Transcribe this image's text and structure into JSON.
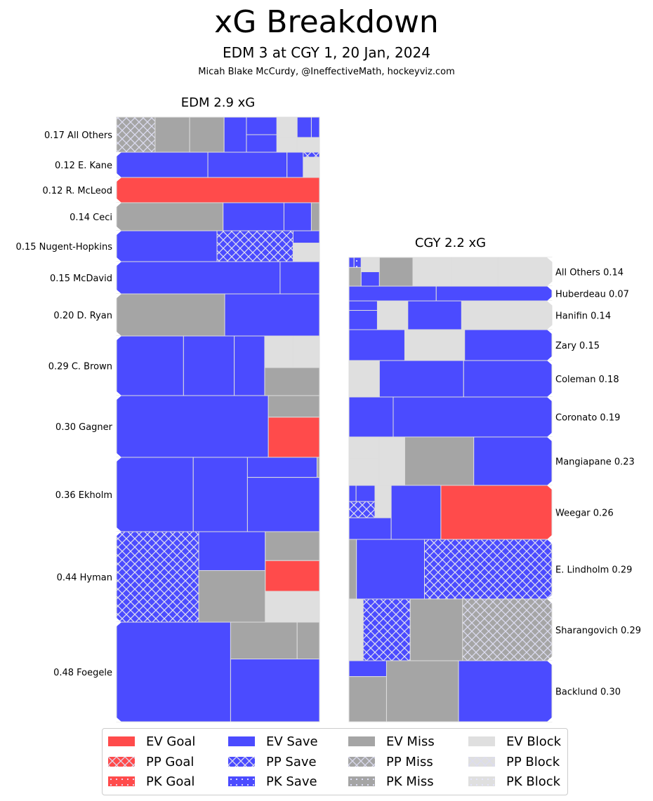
{
  "header": {
    "title": "xG Breakdown",
    "subtitle": "EDM 3 at CGY 1, 20 Jan, 2024",
    "credit": "Micah Blake McCurdy, @IneffectiveMath, hockeyviz.com"
  },
  "colors": {
    "goal": "#ff4b4b",
    "save": "#4b4bff",
    "miss": "#a5a5a5",
    "block": "#dfdfdf",
    "cell_border": "#dddddd"
  },
  "chart_data": {
    "type": "treemap",
    "title": "xG Breakdown",
    "panels": [
      {
        "team": "EDM",
        "title": "EDM 2.9 xG",
        "total_xg": 2.9,
        "label_side": "left",
        "players": [
          {
            "name": "All Others",
            "xg": 0.17,
            "label": "0.17 All Others",
            "cells": [
              "PP Miss",
              "EV Miss",
              "EV Miss",
              "EV Save",
              "EV Save",
              "EV Save",
              "EV Block",
              "EV Block",
              "EV Save",
              "EV Save",
              "EV Block"
            ]
          },
          {
            "name": "E. Kane",
            "xg": 0.12,
            "label": "0.12 E. Kane",
            "cells": [
              "EV Save",
              "EV Save",
              "EV Save",
              "PP Save",
              "EV Block"
            ]
          },
          {
            "name": "R. McLeod",
            "xg": 0.12,
            "label": "0.12 R. McLeod",
            "cells": [
              "EV Goal"
            ]
          },
          {
            "name": "Ceci",
            "xg": 0.14,
            "label": "0.14 Ceci",
            "cells": [
              "EV Miss",
              "EV Save",
              "EV Save",
              "EV Miss"
            ]
          },
          {
            "name": "Nugent-Hopkins",
            "xg": 0.15,
            "label": "0.15 Nugent-Hopkins",
            "cells": [
              "EV Save",
              "PP Save",
              "EV Save",
              "EV Block"
            ]
          },
          {
            "name": "McDavid",
            "xg": 0.15,
            "label": "0.15 McDavid",
            "cells": [
              "EV Save",
              "EV Save"
            ]
          },
          {
            "name": "D. Ryan",
            "xg": 0.2,
            "label": "0.20 D. Ryan",
            "cells": [
              "EV Miss",
              "EV Save"
            ]
          },
          {
            "name": "C. Brown",
            "xg": 0.29,
            "label": "0.29 C. Brown",
            "cells": [
              "EV Save",
              "EV Save",
              "EV Save",
              "EV Block",
              "EV Block",
              "EV Miss"
            ]
          },
          {
            "name": "Gagner",
            "xg": 0.3,
            "label": "0.30 Gagner",
            "cells": [
              "EV Save",
              "EV Miss",
              "EV Goal"
            ]
          },
          {
            "name": "Ekholm",
            "xg": 0.36,
            "label": "0.36 Ekholm",
            "cells": [
              "EV Save",
              "EV Save",
              "EV Save",
              "EV Miss",
              "EV Save"
            ]
          },
          {
            "name": "Hyman",
            "xg": 0.44,
            "label": "0.44 Hyman",
            "cells": [
              "PP Save",
              "EV Save",
              "EV Miss",
              "EV Miss",
              "EV Goal",
              "EV Block"
            ]
          },
          {
            "name": "Foegele",
            "xg": 0.48,
            "label": "0.48 Foegele",
            "cells": [
              "EV Save",
              "EV Miss",
              "EV Miss",
              "EV Save"
            ]
          }
        ]
      },
      {
        "team": "CGY",
        "title": "CGY 2.2 xG",
        "total_xg": 2.2,
        "label_side": "right",
        "players": [
          {
            "name": "All Others",
            "xg": 0.14,
            "label": "All Others 0.14",
            "cells": [
              "EV Save",
              "PK Save",
              "EV Block",
              "EV Miss",
              "EV Save",
              "EV Miss",
              "EV Block",
              "EV Block",
              "EV Block"
            ]
          },
          {
            "name": "Huberdeau",
            "xg": 0.07,
            "label": "Huberdeau 0.07",
            "cells": [
              "EV Save",
              "EV Save"
            ]
          },
          {
            "name": "Hanifin",
            "xg": 0.14,
            "label": "Hanifin 0.14",
            "cells": [
              "EV Save",
              "EV Save",
              "EV Block",
              "EV Save",
              "EV Block"
            ]
          },
          {
            "name": "Zary",
            "xg": 0.15,
            "label": "Zary 0.15",
            "cells": [
              "EV Save",
              "EV Block",
              "EV Save"
            ]
          },
          {
            "name": "Coleman",
            "xg": 0.18,
            "label": "Coleman 0.18",
            "cells": [
              "EV Block",
              "EV Save",
              "EV Save"
            ]
          },
          {
            "name": "Coronato",
            "xg": 0.19,
            "label": "Coronato 0.19",
            "cells": [
              "EV Save",
              "EV Save"
            ]
          },
          {
            "name": "Mangiapane",
            "xg": 0.23,
            "label": "Mangiapane 0.23",
            "cells": [
              "EV Block",
              "EV Block",
              "EV Block",
              "EV Miss",
              "EV Save"
            ]
          },
          {
            "name": "Weegar",
            "xg": 0.26,
            "label": "Weegar 0.26",
            "cells": [
              "EV Save",
              "EV Save",
              "PP Save",
              "EV Block",
              "EV Save",
              "EV Save",
              "EV Goal"
            ]
          },
          {
            "name": "E. Lindholm",
            "xg": 0.29,
            "label": "E. Lindholm 0.29",
            "cells": [
              "EV Miss",
              "EV Save",
              "PP Save"
            ]
          },
          {
            "name": "Sharangovich",
            "xg": 0.29,
            "label": "Sharangovich 0.29",
            "cells": [
              "EV Block",
              "PP Save",
              "EV Miss",
              "PP Miss"
            ]
          },
          {
            "name": "Backlund",
            "xg": 0.3,
            "label": "Backlund 0.30",
            "cells": [
              "EV Save",
              "EV Miss",
              "EV Miss",
              "EV Save"
            ]
          }
        ]
      }
    ],
    "legend": [
      {
        "label": "EV Goal",
        "outcome": "goal",
        "strength": "EV"
      },
      {
        "label": "PP Goal",
        "outcome": "goal",
        "strength": "PP"
      },
      {
        "label": "PK Goal",
        "outcome": "goal",
        "strength": "PK"
      },
      {
        "label": "EV Save",
        "outcome": "save",
        "strength": "EV"
      },
      {
        "label": "PP Save",
        "outcome": "save",
        "strength": "PP"
      },
      {
        "label": "PK Save",
        "outcome": "save",
        "strength": "PK"
      },
      {
        "label": "EV Miss",
        "outcome": "miss",
        "strength": "EV"
      },
      {
        "label": "PP Miss",
        "outcome": "miss",
        "strength": "PP"
      },
      {
        "label": "PK Miss",
        "outcome": "miss",
        "strength": "PK"
      },
      {
        "label": "EV Block",
        "outcome": "block",
        "strength": "EV"
      },
      {
        "label": "PP Block",
        "outcome": "block",
        "strength": "PP"
      },
      {
        "label": "PK Block",
        "outcome": "block",
        "strength": "PK"
      }
    ],
    "legend_placement": "bottom"
  }
}
